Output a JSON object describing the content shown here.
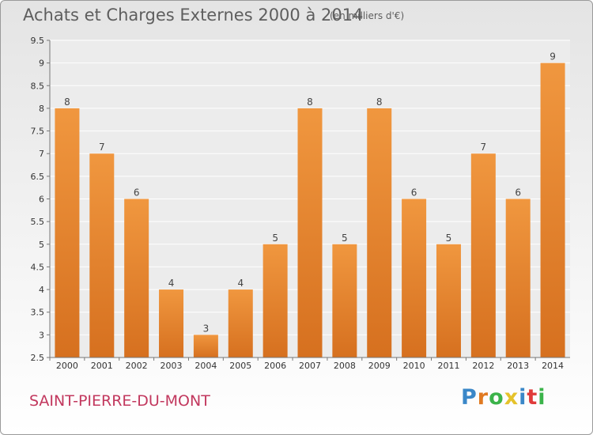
{
  "chart_data": {
    "type": "bar",
    "title": "Achats et Charges Externes 2000 à 2014",
    "subtitle": "(en milliers d'€)",
    "categories": [
      "2000",
      "2001",
      "2002",
      "2003",
      "2004",
      "2005",
      "2006",
      "2007",
      "2008",
      "2009",
      "2010",
      "2011",
      "2012",
      "2013",
      "2014"
    ],
    "values": [
      8,
      7,
      6,
      4,
      3,
      4,
      5,
      8,
      5,
      8,
      6,
      5,
      7,
      6,
      9
    ],
    "data_labels": [
      "8",
      "7",
      "6",
      "4",
      "3",
      "4",
      "5",
      "8",
      "5",
      "8",
      "6",
      "5",
      "7",
      "6",
      "9"
    ],
    "ylim": [
      2.5,
      9.5
    ],
    "yticks": [
      "2.5",
      "3",
      "3.5",
      "4",
      "4.5",
      "5",
      "5.5",
      "6",
      "6.5",
      "7",
      "7.5",
      "8",
      "8.5",
      "9",
      "9.5"
    ],
    "grid": true,
    "bar_color": "#f0973f",
    "bar_color_dark": "#d6701f"
  },
  "commune": "SAINT-PIERRE-DU-MONT",
  "logo": {
    "text": "Proxiti",
    "colors": [
      "#3a87c8",
      "#e07a22",
      "#3bb34a",
      "#e5c22a",
      "#3a87c8",
      "#e03b3b",
      "#3bb34a"
    ]
  }
}
